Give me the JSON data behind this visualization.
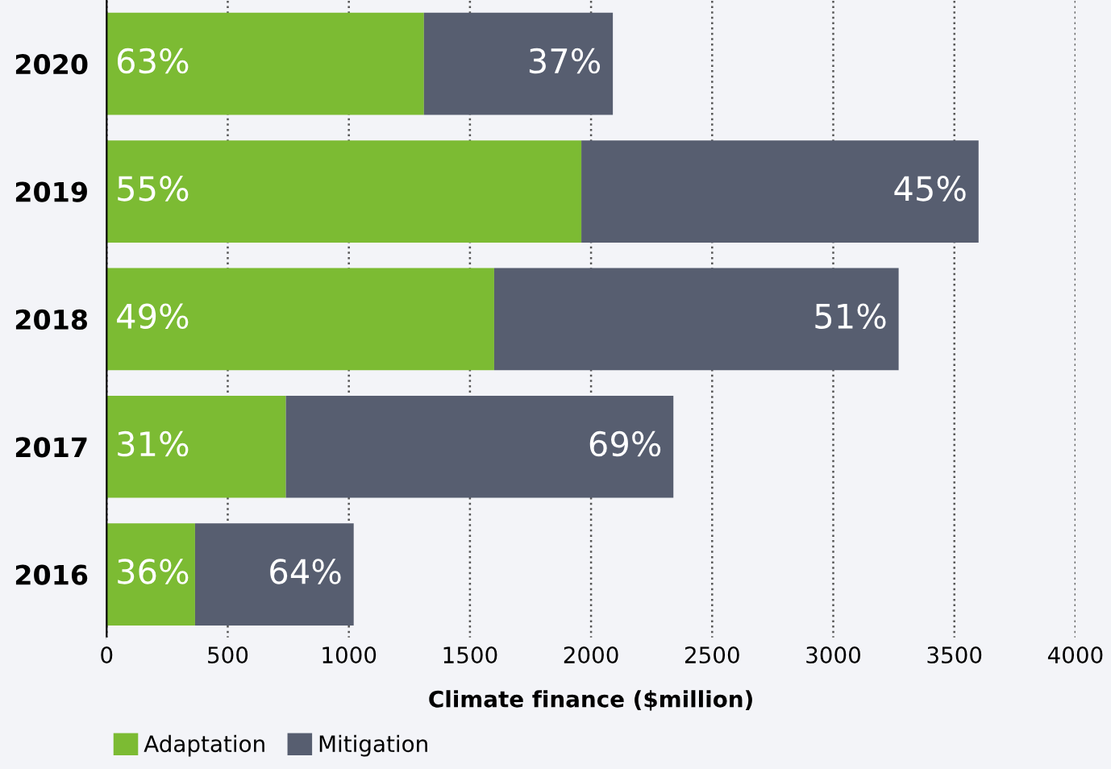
{
  "chart_data": {
    "type": "bar",
    "orientation": "horizontal",
    "stacked": true,
    "categories": [
      "2020",
      "2019",
      "2018",
      "2017",
      "2016"
    ],
    "series": [
      {
        "name": "Adaptation",
        "color": "#7cbb33",
        "values": [
          1310,
          1960,
          1600,
          740,
          365
        ]
      },
      {
        "name": "Mitigation",
        "color": "#575e70",
        "values": [
          780,
          1640,
          1670,
          1600,
          655
        ]
      }
    ],
    "annotations": [
      {
        "text": "63%",
        "x": 190,
        "y": "2020"
      },
      {
        "text": "55%",
        "x": 190,
        "y": "2019"
      },
      {
        "text": "49%",
        "x": 190,
        "y": "2018"
      },
      {
        "text": "31%",
        "x": 190,
        "y": "2017"
      },
      {
        "text": "36%",
        "x": 190,
        "y": "2016"
      },
      {
        "text": "37%",
        "x": 1890,
        "y": "2020"
      },
      {
        "text": "45%",
        "x": 3400,
        "y": "2019"
      },
      {
        "text": "51%",
        "x": 3070,
        "y": "2018"
      },
      {
        "text": "69%",
        "x": 2140,
        "y": "2017"
      },
      {
        "text": "64%",
        "x": 820,
        "y": "2016"
      }
    ],
    "xlabel": "Climate finance ($million)",
    "xlim": [
      0,
      4000
    ],
    "xticks": [
      0,
      500,
      1000,
      1500,
      2000,
      2500,
      3000,
      3500,
      4000
    ],
    "grid": "x",
    "legend": "bottom left"
  }
}
